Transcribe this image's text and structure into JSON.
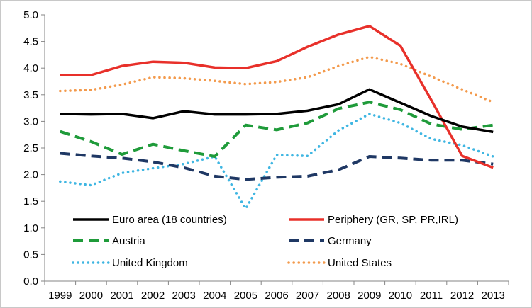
{
  "chart_data": {
    "type": "line",
    "title": "",
    "xlabel": "",
    "ylabel": "",
    "x": [
      "1999",
      "2000",
      "2001",
      "2002",
      "2003",
      "2004",
      "2005",
      "2006",
      "2007",
      "2008",
      "2009",
      "2010",
      "2011",
      "2012",
      "2013"
    ],
    "ylim": [
      0,
      5
    ],
    "yticks": [
      "0.0",
      "0.5",
      "1.0",
      "1.5",
      "2.0",
      "2.5",
      "3.0",
      "3.5",
      "4.0",
      "4.5",
      "5.0"
    ],
    "grid": false,
    "legend_placement": "bottom, inside plot, two columns",
    "series": [
      {
        "name": "Euro area (18 countries)",
        "color": "#000000",
        "style": "solid",
        "values": [
          3.14,
          3.13,
          3.14,
          3.06,
          3.19,
          3.13,
          3.13,
          3.14,
          3.2,
          3.32,
          3.6,
          3.35,
          3.1,
          2.9,
          2.8
        ]
      },
      {
        "name": "Periphery (GR, SP, PR,IRL)",
        "color": "#e8302a",
        "style": "solid",
        "values": [
          3.87,
          3.87,
          4.04,
          4.12,
          4.1,
          4.01,
          4.0,
          4.13,
          4.4,
          4.63,
          4.79,
          4.42,
          3.4,
          2.35,
          2.13
        ]
      },
      {
        "name": "Austria",
        "color": "#1f9b3a",
        "style": "dashed",
        "values": [
          2.81,
          2.62,
          2.38,
          2.57,
          2.45,
          2.34,
          2.93,
          2.84,
          2.97,
          3.24,
          3.36,
          3.22,
          2.95,
          2.85,
          2.93
        ]
      },
      {
        "name": "Germany",
        "color": "#1f3864",
        "style": "dashed",
        "values": [
          2.4,
          2.35,
          2.31,
          2.24,
          2.13,
          1.97,
          1.91,
          1.95,
          1.97,
          2.09,
          2.34,
          2.31,
          2.27,
          2.27,
          2.2
        ]
      },
      {
        "name": "United Kingdom",
        "color": "#3fb6e2",
        "style": "dotted",
        "values": [
          1.87,
          1.8,
          2.03,
          2.12,
          2.2,
          2.34,
          1.36,
          2.37,
          2.35,
          2.83,
          3.14,
          2.97,
          2.67,
          2.55,
          2.34
        ]
      },
      {
        "name": "United States",
        "color": "#f39a4c",
        "style": "dotted",
        "values": [
          3.57,
          3.59,
          3.69,
          3.83,
          3.81,
          3.76,
          3.7,
          3.74,
          3.83,
          4.04,
          4.21,
          4.08,
          3.84,
          3.6,
          3.36
        ]
      }
    ]
  }
}
